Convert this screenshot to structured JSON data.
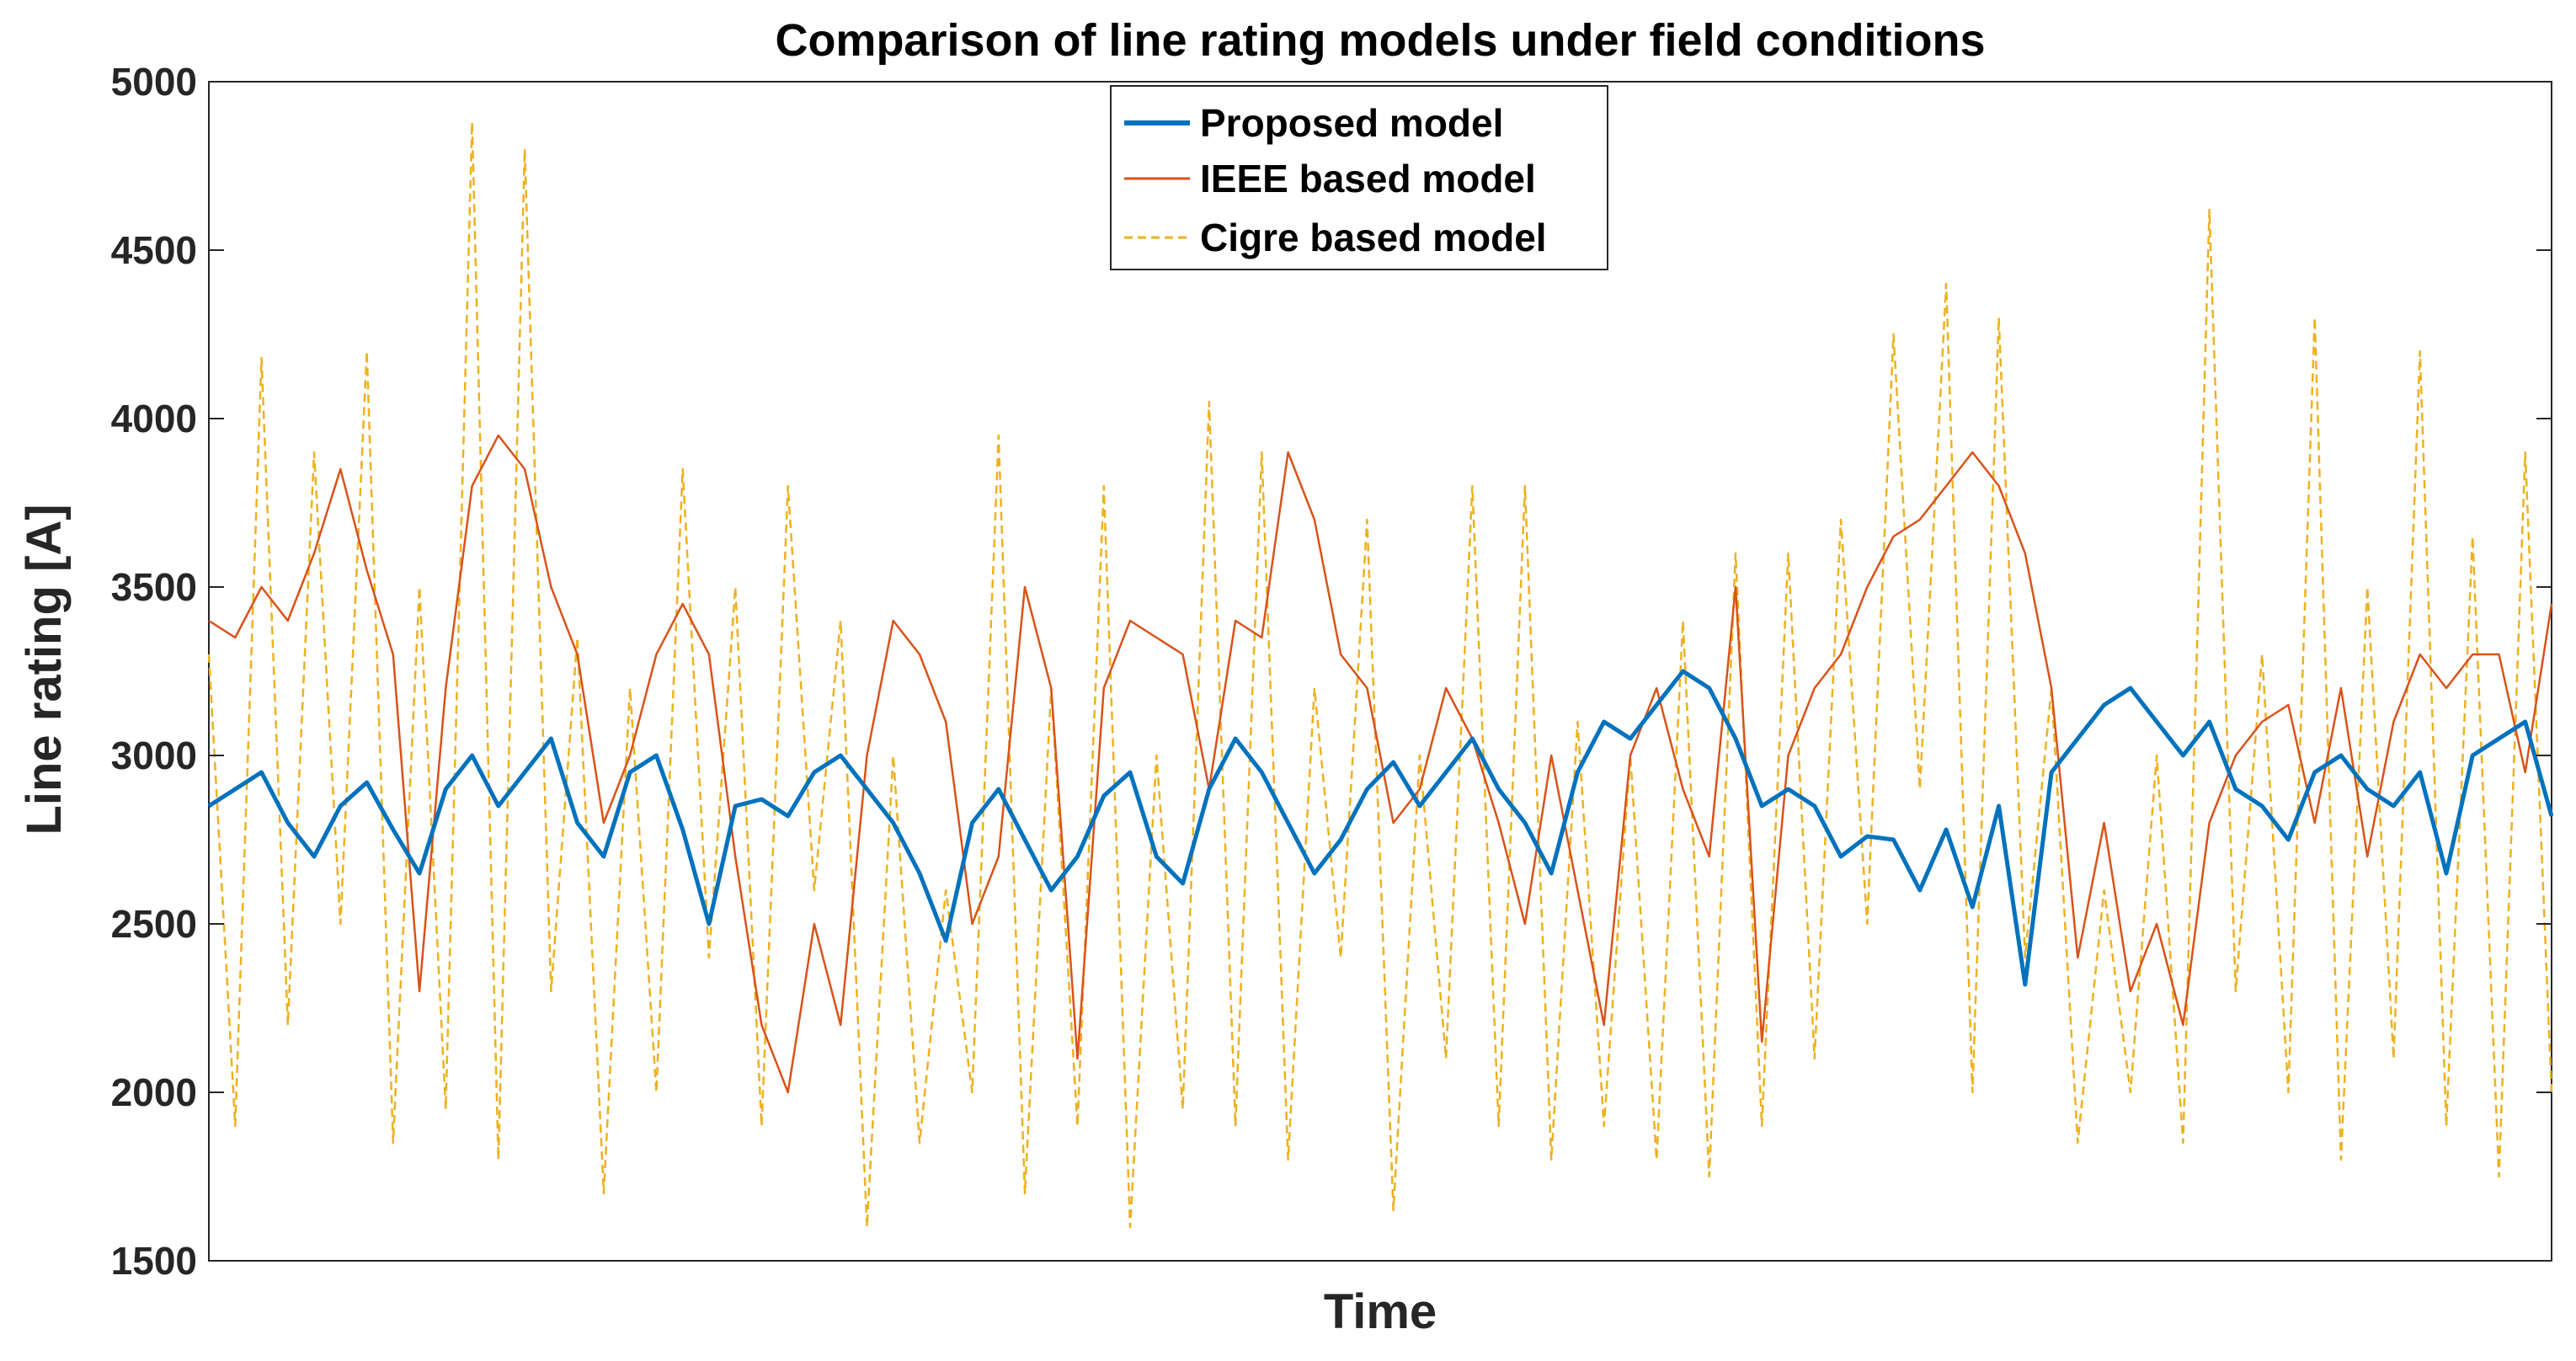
{
  "chart_data": {
    "type": "line",
    "title": "Comparison of line rating models under field conditions",
    "xlabel": "Time",
    "ylabel": "Line rating [A]",
    "ylim": [
      1500,
      5000
    ],
    "yticks": [
      1500,
      2000,
      2500,
      3000,
      3500,
      4000,
      4500,
      5000
    ],
    "xticks": [],
    "grid": false,
    "legend_location": "top-center",
    "x_count": 90,
    "series": [
      {
        "name": "Proposed model",
        "color": "#0072BD",
        "style": "solid",
        "values": [
          2850,
          2900,
          2950,
          2800,
          2700,
          2850,
          2920,
          2780,
          2650,
          2900,
          3000,
          2850,
          2950,
          3050,
          2800,
          2700,
          2950,
          3000,
          2780,
          2500,
          2850,
          2870,
          2820,
          2950,
          3000,
          2900,
          2800,
          2650,
          2450,
          2800,
          2900,
          2750,
          2600,
          2700,
          2880,
          2950,
          2700,
          2620,
          2900,
          3050,
          2950,
          2800,
          2650,
          2750,
          2900,
          2980,
          2850,
          2950,
          3050,
          2900,
          2800,
          2650,
          2950,
          3100,
          3050,
          3150,
          3250,
          3200,
          3050,
          2850,
          2900,
          2850,
          2700,
          2760,
          2750,
          2600,
          2780,
          2550,
          2850,
          2320,
          2950,
          3050,
          3150,
          3200,
          3100,
          3000,
          3100,
          2900,
          2850,
          2750,
          2950,
          3000,
          2900,
          2850,
          2950,
          2650,
          3000,
          3050,
          3100,
          2820
        ]
      },
      {
        "name": "IEEE based model",
        "color": "#D95319",
        "style": "solid",
        "values": [
          3400,
          3350,
          3500,
          3400,
          3600,
          3850,
          3550,
          3300,
          2300,
          3200,
          3800,
          3950,
          3850,
          3500,
          3300,
          2800,
          3000,
          3300,
          3450,
          3300,
          2700,
          2200,
          2000,
          2500,
          2200,
          3000,
          3400,
          3300,
          3100,
          2500,
          2700,
          3500,
          3200,
          2100,
          3200,
          3400,
          3350,
          3300,
          2900,
          3400,
          3350,
          3900,
          3700,
          3300,
          3200,
          2800,
          2900,
          3200,
          3050,
          2800,
          2500,
          3000,
          2600,
          2200,
          3000,
          3200,
          2900,
          2700,
          3500,
          2150,
          3000,
          3200,
          3300,
          3500,
          3650,
          3700,
          3800,
          3900,
          3800,
          3600,
          3200,
          2400,
          2800,
          2300,
          2500,
          2200,
          2800,
          3000,
          3100,
          3150,
          2800,
          3200,
          2700,
          3100,
          3300,
          3200,
          3300,
          3300,
          2950,
          3450
        ]
      },
      {
        "name": "Cigre based model",
        "color": "#EDB120",
        "style": "dashed",
        "values": [
          3300,
          1900,
          4180,
          2200,
          3900,
          2500,
          4200,
          1850,
          3500,
          1950,
          4880,
          1800,
          4800,
          2300,
          3350,
          1700,
          3200,
          2000,
          3850,
          2400,
          3500,
          1900,
          3800,
          2600,
          3400,
          1600,
          3000,
          1850,
          2600,
          2000,
          3950,
          1700,
          3200,
          1900,
          3800,
          1600,
          3000,
          1950,
          4050,
          1900,
          3900,
          1800,
          3200,
          2400,
          3700,
          1650,
          3000,
          2100,
          3800,
          1900,
          3800,
          1800,
          3100,
          1900,
          3000,
          1800,
          3400,
          1750,
          3600,
          1900,
          3600,
          2100,
          3700,
          2500,
          4250,
          2900,
          4400,
          2000,
          4300,
          2400,
          3200,
          1850,
          2600,
          2000,
          3000,
          1850,
          4620,
          2300,
          3300,
          2000,
          4300,
          1800,
          3500,
          2100,
          4200,
          1900,
          3650,
          1750,
          3900,
          2000
        ]
      }
    ]
  }
}
